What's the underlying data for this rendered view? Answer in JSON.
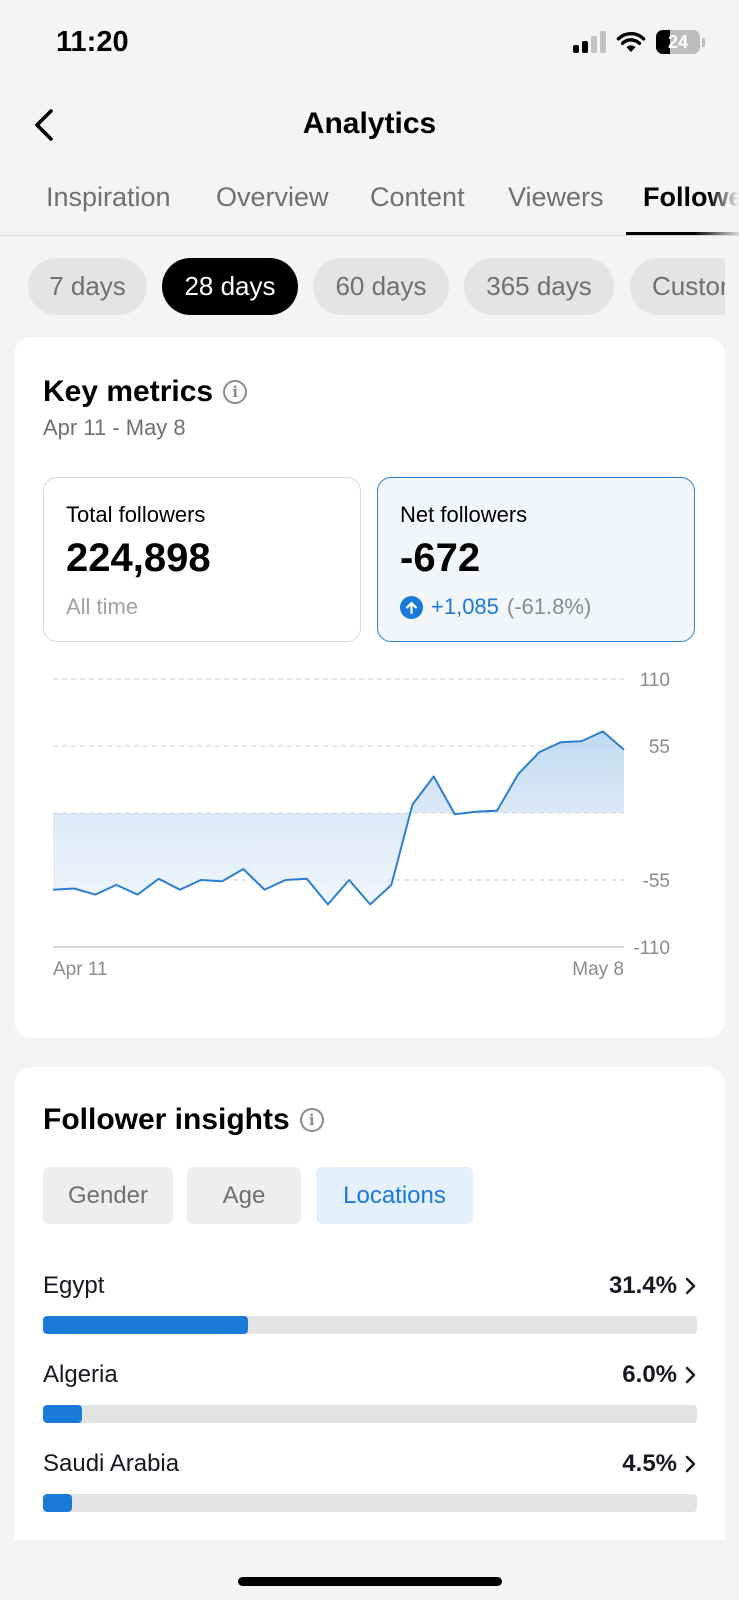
{
  "status_bar": {
    "time": "11:20",
    "battery": "24"
  },
  "header": {
    "title": "Analytics"
  },
  "top_tabs": [
    "Inspiration",
    "Overview",
    "Content",
    "Viewers",
    "Followe"
  ],
  "active_top_tab": "Followe",
  "range_chips": [
    "7 days",
    "28 days",
    "60 days",
    "365 days",
    "Custor"
  ],
  "active_range": "28 days",
  "key_metrics": {
    "title": "Key metrics",
    "date_range": "Apr 11 - May 8",
    "total": {
      "label": "Total followers",
      "value": "224,898",
      "sub": "All time"
    },
    "net": {
      "label": "Net followers",
      "value": "-672",
      "change": "+1,085",
      "change_pct": "(-61.8%)"
    }
  },
  "chart_data": {
    "type": "area",
    "title": "",
    "xlabel": "",
    "ylabel": "",
    "x_tick_labels": [
      "Apr 11",
      "May 8"
    ],
    "y_ticks": [
      110,
      55,
      -55,
      -110
    ],
    "y_tick_labels": [
      "110",
      "55",
      "-55",
      "-110"
    ],
    "ylim": [
      -110,
      110
    ],
    "grid": true,
    "color": "#2c7fce",
    "series": [
      {
        "values": [
          -63,
          -62,
          -67,
          -59,
          -67,
          -54,
          -63,
          -55,
          -56,
          -46,
          -63,
          -55,
          -54,
          -75,
          -55,
          -75,
          -59,
          7,
          30,
          -1,
          1,
          2,
          32,
          50,
          58,
          59,
          67,
          52
        ]
      }
    ]
  },
  "follower_insights": {
    "title": "Follower insights",
    "tabs": [
      "Gender",
      "Age",
      "Locations"
    ],
    "active_tab": "Locations",
    "locations": [
      {
        "name": "Egypt",
        "pct": "31.4%",
        "value": 31.4
      },
      {
        "name": "Algeria",
        "pct": "6.0%",
        "value": 6.0
      },
      {
        "name": "Saudi Arabia",
        "pct": "4.5%",
        "value": 4.5
      }
    ]
  },
  "colors": {
    "accent": "#1a7ad8",
    "background": "#f4f4f4",
    "chip_active": "#000000"
  }
}
